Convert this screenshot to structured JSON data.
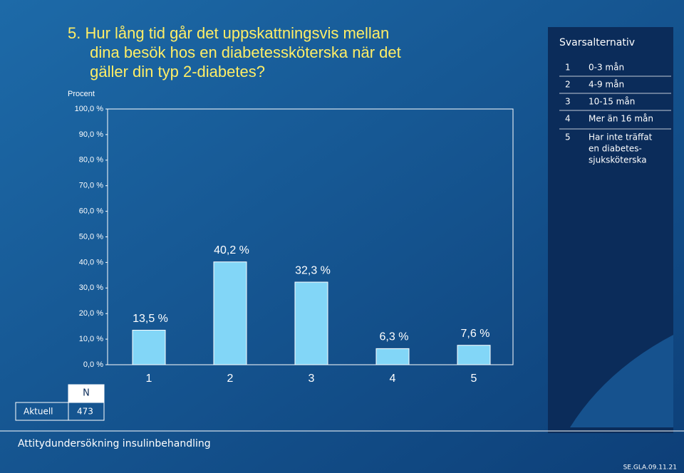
{
  "chart_data": {
    "type": "bar",
    "title": "5. Hur lång tid går det uppskattningsvis mellan dina besök hos en diabetessköterska när det gäller din typ 2-diabetes?",
    "ylabel": "Procent",
    "categories": [
      "1",
      "2",
      "3",
      "4",
      "5"
    ],
    "values": [
      13.5,
      40.2,
      32.3,
      6.3,
      7.6
    ],
    "value_labels": [
      "13,5 %",
      "40,2 %",
      "32,3 %",
      "6,3 %",
      "7,6 %"
    ],
    "color": "#82d6f7",
    "ylim": [
      0,
      100
    ],
    "yticks": [
      {
        "value": 0,
        "label": "0,0 %"
      },
      {
        "value": 10,
        "label": "10,0 %"
      },
      {
        "value": 20,
        "label": "20,0 %"
      },
      {
        "value": 30,
        "label": "30,0 %"
      },
      {
        "value": 40,
        "label": "40,0 %"
      },
      {
        "value": 50,
        "label": "50,0 %"
      },
      {
        "value": 60,
        "label": "60,0 %"
      },
      {
        "value": 70,
        "label": "70,0 %"
      },
      {
        "value": 80,
        "label": "80,0 %"
      },
      {
        "value": 90,
        "label": "90,0 %"
      },
      {
        "value": 100,
        "label": "100,0 %"
      }
    ]
  },
  "legend": {
    "title": "Svarsalternativ",
    "items": [
      {
        "num": "1",
        "label": [
          "0-3 mån"
        ]
      },
      {
        "num": "2",
        "label": [
          "4-9 mån"
        ]
      },
      {
        "num": "3",
        "label": [
          "10-15 mån"
        ]
      },
      {
        "num": "4",
        "label": [
          "Mer än 16 mån"
        ]
      },
      {
        "num": "5",
        "label": [
          "Har inte träffat",
          "en diabetes-",
          "sjuksköterska"
        ]
      }
    ]
  },
  "table": {
    "header": "N",
    "rows": [
      [
        "Aktuell",
        "473"
      ]
    ]
  },
  "footer": {
    "text": "Attitydundersökning insulinbehandling",
    "code": "SE.GLA.09.11.21"
  }
}
